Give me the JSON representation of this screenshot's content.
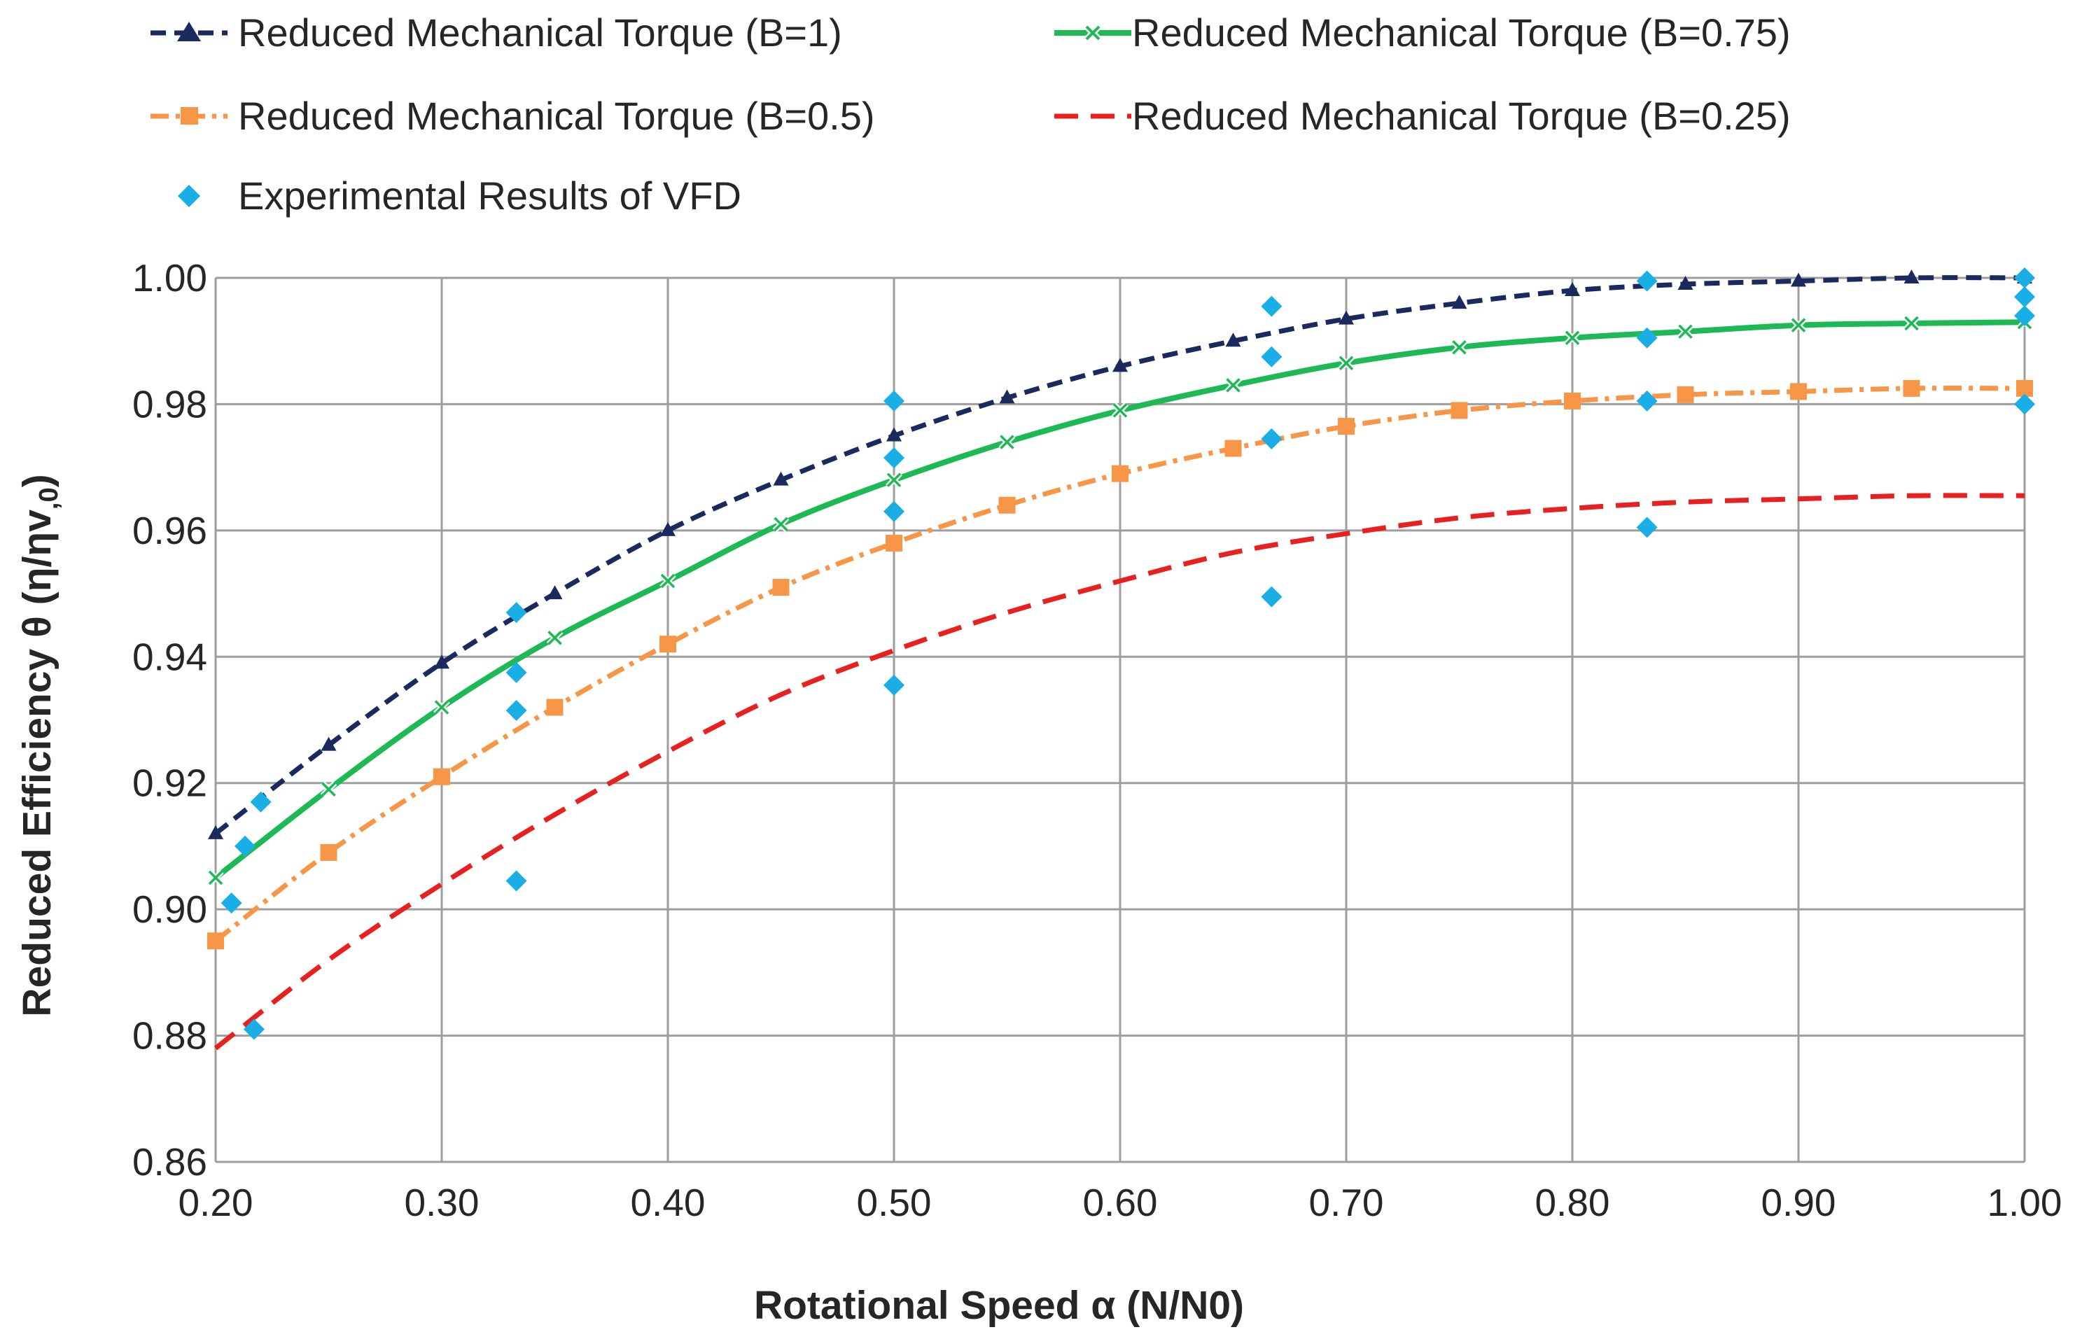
{
  "chart_data": {
    "type": "line",
    "title": "",
    "xlabel": "Rotational Speed α (N/N0)",
    "ylabel_main": "Reduced Efficiency θ (η/ηv",
    "ylabel_sub": ",0",
    "ylabel_close": ")",
    "xlim": [
      0.2,
      1.0
    ],
    "ylim": [
      0.86,
      1.0
    ],
    "x_ticks": [
      0.2,
      0.3,
      0.4,
      0.5,
      0.6,
      0.7,
      0.8,
      0.9,
      1.0
    ],
    "x_tick_labels": [
      "0.20",
      "0.30",
      "0.40",
      "0.50",
      "0.60",
      "0.70",
      "0.80",
      "0.90",
      "1.00"
    ],
    "y_ticks": [
      0.86,
      0.88,
      0.9,
      0.92,
      0.94,
      0.96,
      0.98,
      1.0
    ],
    "y_tick_labels": [
      "0.86",
      "0.88",
      "0.90",
      "0.92",
      "0.94",
      "0.96",
      "0.98",
      "1.00"
    ],
    "grid": true,
    "legend_position": "top",
    "series": [
      {
        "name": "Reduced Mechanical Torque (B=1)",
        "color": "#1b2a5e",
        "line_style": "dashed",
        "marker": "triangle",
        "x": [
          0.2,
          0.25,
          0.3,
          0.35,
          0.4,
          0.45,
          0.5,
          0.55,
          0.6,
          0.65,
          0.7,
          0.75,
          0.8,
          0.85,
          0.9,
          0.95,
          1.0
        ],
        "values": [
          0.912,
          0.926,
          0.939,
          0.95,
          0.96,
          0.968,
          0.975,
          0.981,
          0.986,
          0.99,
          0.9935,
          0.996,
          0.998,
          0.999,
          0.9995,
          1.0,
          1.0
        ]
      },
      {
        "name": "Reduced Mechanical Torque (B=0.75)",
        "color": "#1db954",
        "line_style": "solid",
        "marker": "x",
        "x": [
          0.2,
          0.25,
          0.3,
          0.35,
          0.4,
          0.45,
          0.5,
          0.55,
          0.6,
          0.65,
          0.7,
          0.75,
          0.8,
          0.85,
          0.9,
          0.95,
          1.0
        ],
        "values": [
          0.905,
          0.919,
          0.932,
          0.943,
          0.952,
          0.961,
          0.968,
          0.974,
          0.979,
          0.983,
          0.9865,
          0.989,
          0.9905,
          0.9915,
          0.9925,
          0.9928,
          0.993
        ]
      },
      {
        "name": "Reduced Mechanical Torque (B=0.5)",
        "color": "#f79646",
        "line_style": "dash-dot",
        "marker": "square",
        "x": [
          0.2,
          0.25,
          0.3,
          0.35,
          0.4,
          0.45,
          0.5,
          0.55,
          0.6,
          0.65,
          0.7,
          0.75,
          0.8,
          0.85,
          0.9,
          0.95,
          1.0
        ],
        "values": [
          0.895,
          0.909,
          0.921,
          0.932,
          0.942,
          0.951,
          0.958,
          0.964,
          0.969,
          0.973,
          0.9765,
          0.979,
          0.9805,
          0.9815,
          0.982,
          0.9825,
          0.9825
        ]
      },
      {
        "name": "Reduced Mechanical Torque (B=0.25)",
        "color": "#e82020",
        "line_style": "long-dashed",
        "marker": "none",
        "x": [
          0.2,
          0.25,
          0.3,
          0.35,
          0.4,
          0.45,
          0.5,
          0.55,
          0.6,
          0.65,
          0.7,
          0.75,
          0.8,
          0.85,
          0.9,
          0.95,
          1.0
        ],
        "values": [
          0.878,
          0.892,
          0.904,
          0.915,
          0.925,
          0.934,
          0.941,
          0.947,
          0.952,
          0.9565,
          0.9595,
          0.962,
          0.9635,
          0.9645,
          0.965,
          0.9655,
          0.9655
        ]
      },
      {
        "name": "Experimental Results of VFD",
        "color": "#1aaee6",
        "line_style": "none",
        "marker": "diamond",
        "x": [
          0.207,
          0.213,
          0.217,
          0.22,
          0.333,
          0.333,
          0.333,
          0.333,
          0.5,
          0.5,
          0.5,
          0.5,
          0.667,
          0.667,
          0.667,
          0.667,
          0.833,
          0.833,
          0.833,
          0.833,
          1.0,
          1.0,
          1.0,
          1.0
        ],
        "values": [
          0.901,
          0.91,
          0.881,
          0.917,
          0.947,
          0.9375,
          0.9315,
          0.9045,
          0.9805,
          0.9715,
          0.963,
          0.9355,
          0.9955,
          0.9875,
          0.9745,
          0.9495,
          0.9995,
          0.9905,
          0.9805,
          0.9605,
          1.0,
          0.997,
          0.994,
          0.98
        ]
      }
    ]
  }
}
